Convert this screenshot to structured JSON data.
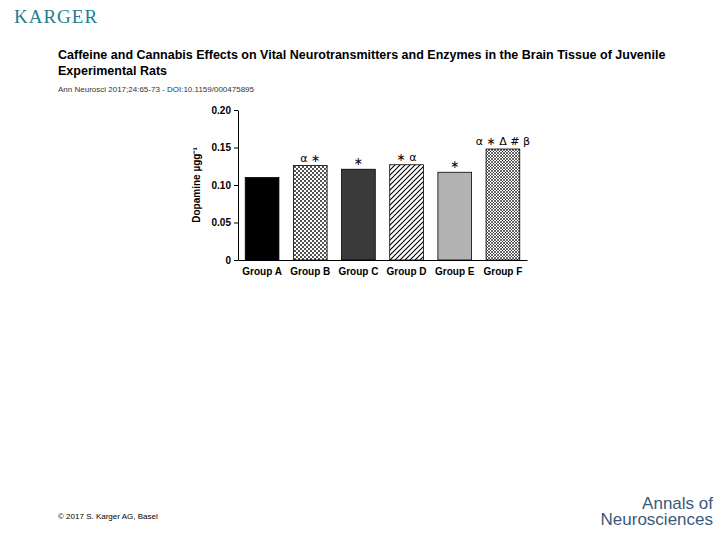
{
  "page": {
    "publisher": "KARGER",
    "copyright": "© 2017 S. Karger AG, Basel",
    "journal": "Annals of Neurosciences"
  },
  "chart_data": {
    "type": "bar",
    "title": "Caffeine and Cannabis Effects on Vital Neurotransmitters and Enzymes in the Brain Tissue of Juvenile Experimental Rats",
    "subtitle": "Ann Neurosci 2017;24:65-73 - DOI:10.1159/000475895",
    "y_label": "Dopamine µgg⁻¹",
    "categories": [
      "Group A",
      "Group B",
      "Group C",
      "Group D",
      "Group E",
      "Group F"
    ],
    "values": [
      0.11,
      0.126,
      0.121,
      0.127,
      0.117,
      0.148
    ],
    "colors": [
      "#000000",
      "#ffffff",
      "#3a3a3a",
      "#ffffff",
      "#b3b3b3",
      "#ffffff"
    ],
    "annotations": [
      null,
      "α ∗",
      "∗",
      "∗ α",
      "∗",
      "α ∗ Δ # β"
    ],
    "ylim": [
      0,
      0.2
    ],
    "yticks": [
      0,
      0.05,
      {
        "value": 0.1,
        "label": "0.10"
      },
      0.15,
      {
        "value": 0.2,
        "label": "0.20"
      }
    ],
    "grid": false
  }
}
